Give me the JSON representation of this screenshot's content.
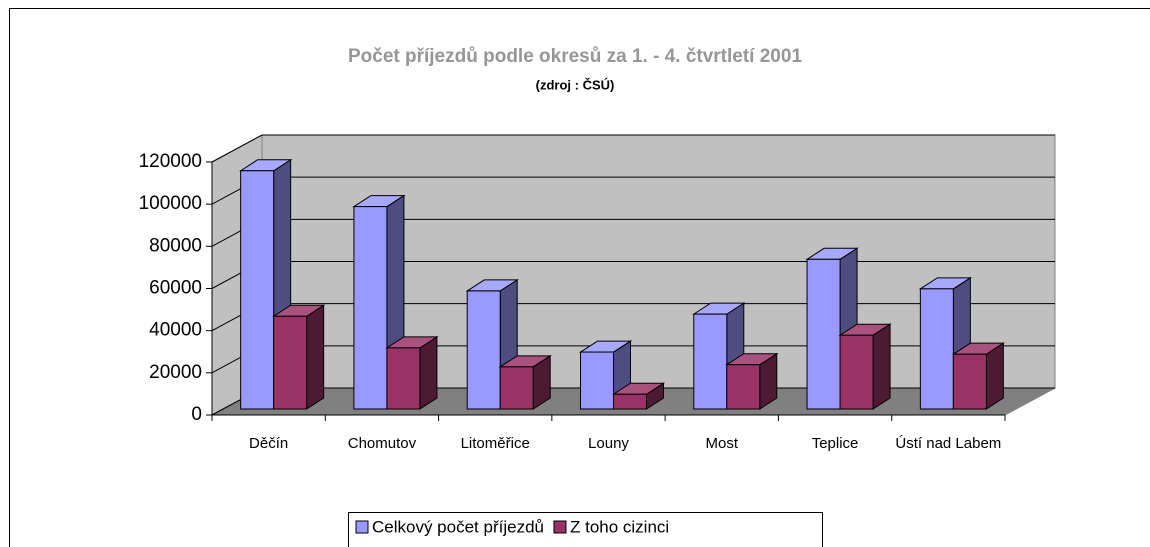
{
  "chart_data": {
    "type": "bar3d",
    "title": "Počet příjezdů podle okresů za 1. - 4. čtvrtletí 2001",
    "subtitle": "(zdroj : ČSÚ)",
    "categories": [
      "Děčín",
      "Chomutov",
      "Litoměřice",
      "Louny",
      "Most",
      "Teplice",
      "Ústí nad Labem"
    ],
    "series": [
      {
        "name": "Celkový počet příjezdů",
        "color": "#9999ff",
        "values": [
          113000,
          96000,
          56000,
          27000,
          45000,
          71000,
          57000
        ]
      },
      {
        "name": "Z toho cizinci",
        "color": "#993366",
        "values": [
          44000,
          29000,
          20000,
          7000,
          21000,
          35000,
          26000
        ]
      }
    ],
    "ylim": [
      0,
      120000
    ],
    "yticks": [
      0,
      20000,
      40000,
      60000,
      80000,
      100000,
      120000
    ],
    "grid": true,
    "legend": "bottom"
  }
}
